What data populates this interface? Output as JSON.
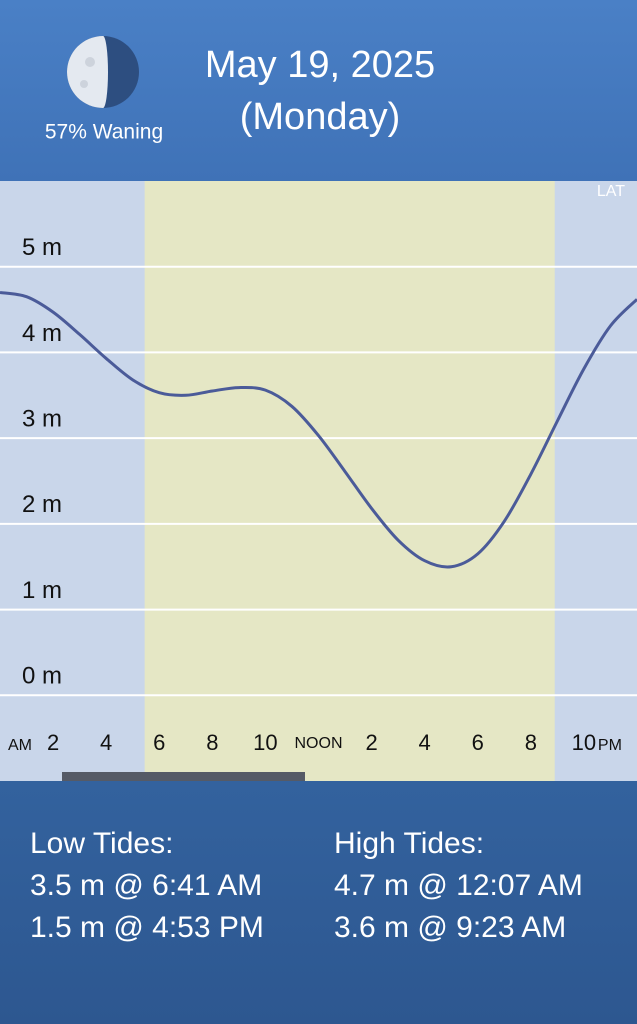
{
  "header": {
    "moon_phase": "57% Waning",
    "date": "May 19, 2025",
    "weekday": "(Monday)"
  },
  "chart_data": {
    "type": "line",
    "datum_label": "LAT",
    "x": [
      0,
      1,
      2,
      3,
      4,
      5,
      6,
      7,
      8,
      9,
      10,
      11,
      12,
      13,
      14,
      15,
      16,
      17,
      18,
      19,
      20,
      21,
      22,
      23,
      24
    ],
    "series": [
      {
        "color": "#4b5b99",
        "values": [
          4.7,
          4.65,
          4.47,
          4.21,
          3.93,
          3.68,
          3.53,
          3.5,
          3.55,
          3.59,
          3.56,
          3.37,
          3.03,
          2.61,
          2.18,
          1.81,
          1.57,
          1.5,
          1.65,
          2.03,
          2.58,
          3.2,
          3.81,
          4.31,
          4.62
        ]
      }
    ],
    "xlim": [
      0,
      24
    ],
    "xticks": [
      2,
      4,
      6,
      8,
      10,
      {
        "value": 12,
        "label": "NOON"
      },
      {
        "value": 14,
        "label": "2"
      },
      {
        "value": 16,
        "label": "4"
      },
      {
        "value": 18,
        "label": "6"
      },
      {
        "value": 20,
        "label": "8"
      },
      {
        "value": 22,
        "label": "10"
      }
    ],
    "am_label": "AM",
    "pm_label": "PM",
    "ylim": [
      -1,
      6
    ],
    "yticks": [
      {
        "value": 0,
        "label": "0 m"
      },
      {
        "value": 1,
        "label": "1 m"
      },
      {
        "value": 2,
        "label": "2 m"
      },
      {
        "value": 3,
        "label": "3 m"
      },
      {
        "value": 4,
        "label": "4 m"
      },
      {
        "value": 5,
        "label": "5 m"
      }
    ],
    "grid": true,
    "daylight_band": [
      5.45,
      20.9
    ]
  },
  "tides": {
    "low_title": "Low Tides:",
    "low": [
      "3.5 m @ 6:41 AM",
      "1.5 m @ 4:53 PM"
    ],
    "high_title": "High Tides:",
    "high": [
      "4.7 m @ 12:07 AM",
      "3.6 m @ 9:23 AM"
    ]
  }
}
